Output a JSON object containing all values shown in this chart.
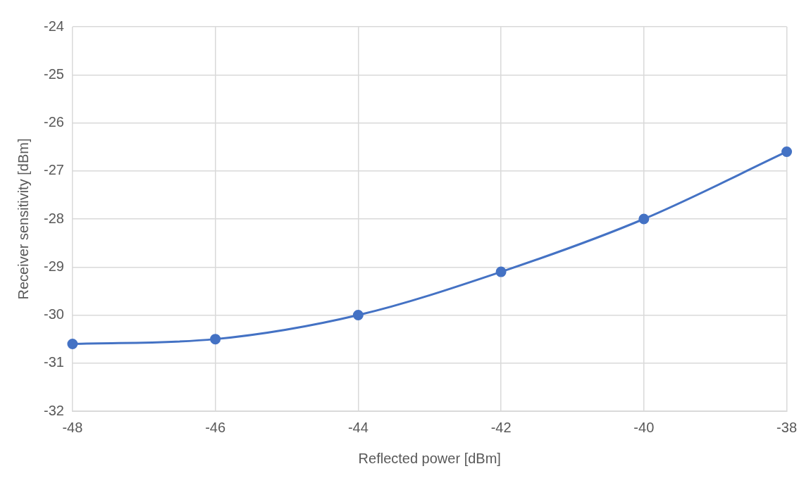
{
  "chart_data": {
    "type": "line",
    "xlabel": "Reflected power [dBm]",
    "ylabel": "Receiver sensitivity [dBm]",
    "x": [
      -48,
      -46,
      -44,
      -42,
      -40,
      -38
    ],
    "series": [
      {
        "color": "#4472c4",
        "values": [
          -30.6,
          -30.5,
          -30.0,
          -29.1,
          -28.0,
          -26.6
        ]
      }
    ],
    "xlim": [
      -48,
      -38
    ],
    "xticks": [
      -48,
      -46,
      -44,
      -42,
      -40,
      -38
    ],
    "ylim": [
      -32,
      -24
    ],
    "yticks": [
      -32,
      -31,
      -30,
      -29,
      -28,
      -27,
      -26,
      -25,
      -24
    ],
    "grid": true,
    "legend": false,
    "marker": "circle",
    "line_style": "solid"
  }
}
